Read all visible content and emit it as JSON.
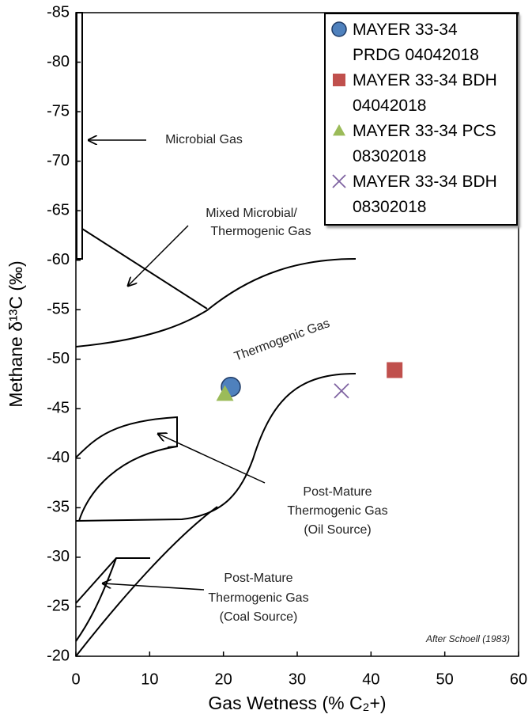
{
  "chart_data": {
    "type": "scatter",
    "x_label": "Gas Wetness (% C₂+)",
    "y_label": "Methane δ¹³C (‰)",
    "xlim": [
      0,
      60
    ],
    "xticks": [
      0,
      10,
      20,
      30,
      40,
      50,
      60
    ],
    "ylim": [
      -20,
      -85
    ],
    "yticks": [
      -85,
      -80,
      -75,
      -70,
      -65,
      -60,
      -55,
      -50,
      -45,
      -40,
      -35,
      -30,
      -25,
      -20
    ],
    "series": [
      {
        "name": "MAYER 33-34 PRDG 04042018",
        "color": "#4f81bd",
        "marker": "circle",
        "x": [
          21
        ],
        "values": [
          -47.2
        ]
      },
      {
        "name": "MAYER 33-34 BDH 04042018",
        "color": "#c0504d",
        "marker": "square",
        "x": [
          43.2
        ],
        "values": [
          -48.9
        ]
      },
      {
        "name": "MAYER 33-34 PCS 08302018",
        "color": "#9bbb59",
        "marker": "triangle",
        "x": [
          20.2
        ],
        "values": [
          -46.5
        ]
      },
      {
        "name": "MAYER 33-34 BDH 08302018",
        "color": "#8064a2",
        "marker": "x",
        "x": [
          36
        ],
        "values": [
          -46.8
        ]
      }
    ],
    "annotations": [
      "Microbial Gas",
      "Mixed Microbial/",
      "Thermogenic Gas",
      "Thermogenic Gas",
      "Post-Mature",
      "Thermogenic Gas",
      "(Oil Source)",
      "Post-Mature",
      "Thermogenic Gas",
      "(Coal Source)",
      "After Schoell (1983)"
    ]
  }
}
